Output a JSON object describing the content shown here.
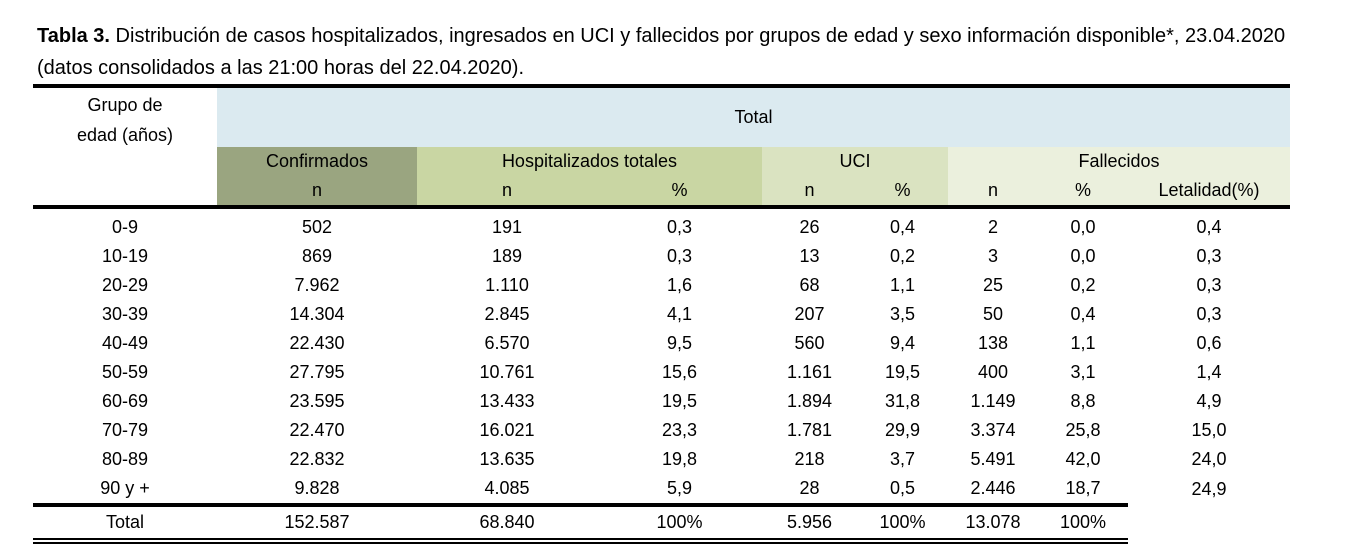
{
  "title": {
    "bold": "Tabla 3.",
    "text": " Distribución de casos hospitalizados, ingresados en UCI y fallecidos por grupos de edad y sexo información disponible*, 23.04.2020 (datos consolidados a las 21:00 horas del 22.04.2020)."
  },
  "header": {
    "age_group": "Grupo de edad (años)",
    "total": "Total",
    "confirmados": "Confirmados",
    "hospitalizados": "Hospitalizados totales",
    "uci": "UCI",
    "fallecidos": "Fallecidos",
    "n": "n",
    "pct": "%",
    "letalidad": "Letalidad(%)"
  },
  "colors": {
    "total_bg": "#dbeaf0",
    "confirmados_bg": "#9aa580",
    "hospitalizados_bg": "#c9d6a3",
    "uci_bg": "#dae3c1",
    "fallecidos_bg": "#ebf0dd"
  },
  "rows": [
    [
      "0-9",
      "502",
      "191",
      "0,3",
      "26",
      "0,4",
      "2",
      "0,0",
      "0,4"
    ],
    [
      "10-19",
      "869",
      "189",
      "0,3",
      "13",
      "0,2",
      "3",
      "0,0",
      "0,3"
    ],
    [
      "20-29",
      "7.962",
      "1.110",
      "1,6",
      "68",
      "1,1",
      "25",
      "0,2",
      "0,3"
    ],
    [
      "30-39",
      "14.304",
      "2.845",
      "4,1",
      "207",
      "3,5",
      "50",
      "0,4",
      "0,3"
    ],
    [
      "40-49",
      "22.430",
      "6.570",
      "9,5",
      "560",
      "9,4",
      "138",
      "1,1",
      "0,6"
    ],
    [
      "50-59",
      "27.795",
      "10.761",
      "15,6",
      "1.161",
      "19,5",
      "400",
      "3,1",
      "1,4"
    ],
    [
      "60-69",
      "23.595",
      "13.433",
      "19,5",
      "1.894",
      "31,8",
      "1.149",
      "8,8",
      "4,9"
    ],
    [
      "70-79",
      "22.470",
      "16.021",
      "23,3",
      "1.781",
      "29,9",
      "3.374",
      "25,8",
      "15,0"
    ],
    [
      "80-89",
      "22.832",
      "13.635",
      "19,8",
      "218",
      "3,7",
      "5.491",
      "42,0",
      "24,0"
    ],
    [
      "90 y +",
      "9.828",
      "4.085",
      "5,9",
      "28",
      "0,5",
      "2.446",
      "18,7",
      "24,9"
    ]
  ],
  "total_row": [
    "Total",
    "152.587",
    "68.840",
    "100%",
    "5.956",
    "100%",
    "13.078",
    "100%",
    ""
  ]
}
